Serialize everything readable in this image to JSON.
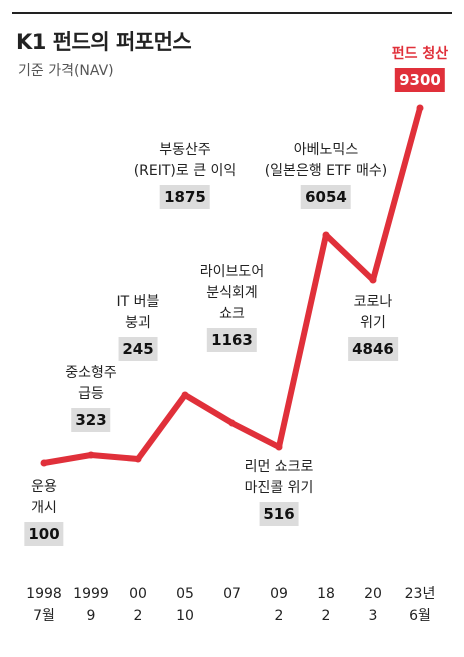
{
  "title": "K1 펀드의 퍼포먼스",
  "subtitle": "기준 가격(NAV)",
  "colors": {
    "line": "#e0303a",
    "valueBox": "#dcdcdc",
    "highlight": "#e0303a"
  },
  "chart_data": {
    "type": "line",
    "categories": [
      {
        "year": "1998",
        "month": "7월"
      },
      {
        "year": "1999",
        "month": "9"
      },
      {
        "year": "00",
        "month": "2"
      },
      {
        "year": "05",
        "month": "10"
      },
      {
        "year": "07",
        "month": ""
      },
      {
        "year": "09",
        "month": "2"
      },
      {
        "year": "18",
        "month": "2"
      },
      {
        "year": "20",
        "month": "3"
      },
      {
        "year": "23년",
        "month": "6월"
      }
    ],
    "series": [
      {
        "values": [
          100,
          323,
          245,
          1875,
          1163,
          516,
          6054,
          4846,
          9300
        ]
      }
    ],
    "annotations": [
      {
        "text": [
          "운용",
          "개시"
        ],
        "value": "100"
      },
      {
        "text": [
          "중소형주",
          "급등"
        ],
        "value": "323"
      },
      {
        "text": [
          "IT 버블",
          "붕괴"
        ],
        "value": "245"
      },
      {
        "text": [
          "부동산주",
          "(REIT)로 큰 이익"
        ],
        "value": "1875"
      },
      {
        "text": [
          "라이브도어",
          "분식회계",
          "쇼크"
        ],
        "value": "1163"
      },
      {
        "text": [
          "리먼 쇼크로",
          "마진콜 위기"
        ],
        "value": "516"
      },
      {
        "text": [
          "아베노믹스",
          "(일본은행 ETF 매수)"
        ],
        "value": "6054"
      },
      {
        "text": [
          "코로나",
          "위기"
        ],
        "value": "4846"
      },
      {
        "text": [
          "펀드 청산"
        ],
        "value": "9300"
      }
    ],
    "ylim": [
      0,
      10000
    ],
    "grid": false
  }
}
